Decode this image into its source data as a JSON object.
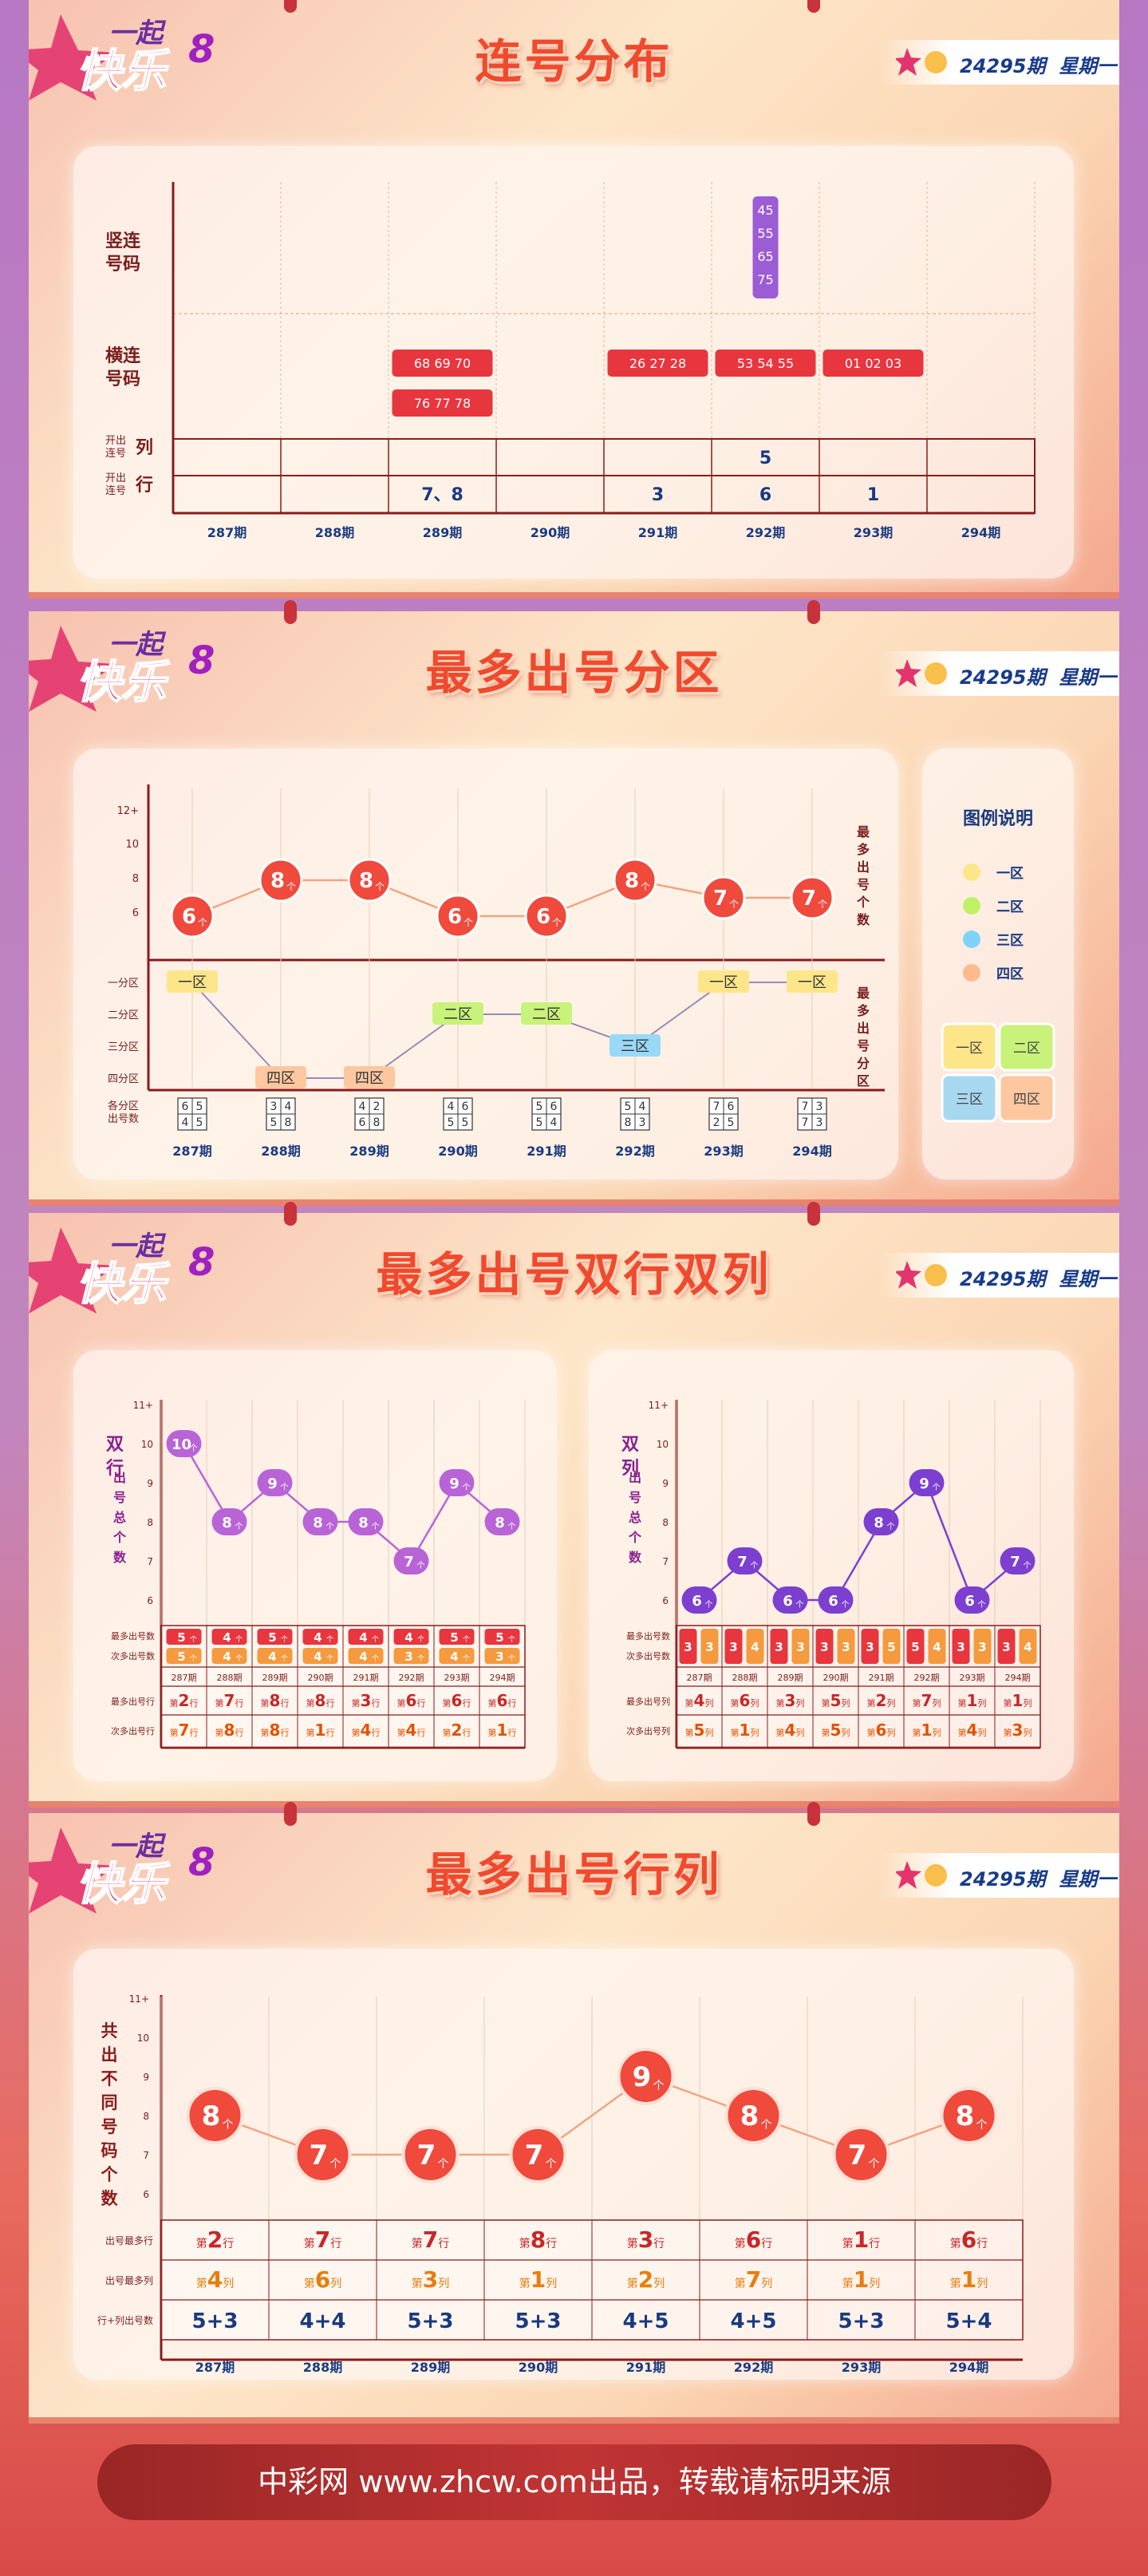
{
  "header": {
    "issue_label": "24295期",
    "weekday": "星期一"
  },
  "logo": {
    "line1": "一起",
    "line2": "快乐",
    "digit": "8"
  },
  "sections": [
    {
      "title": "连号分布"
    },
    {
      "title": "最多出号分区"
    },
    {
      "title": "最多出号双行双列"
    },
    {
      "title": "最多出号行列"
    }
  ],
  "issues": [
    "287期",
    "288期",
    "289期",
    "290期",
    "291期",
    "292期",
    "293期",
    "294期"
  ],
  "consecutive": {
    "row_labels": {
      "vertical": "竖连号码",
      "horizontal": "横连号码",
      "col_line1": "开出连号",
      "col_suffix": "列",
      "row_line1": "开出连号",
      "row_suffix": "行"
    },
    "vertical": [
      {
        "issue_index": 5,
        "numbers": [
          "45",
          "55",
          "65",
          "75"
        ]
      }
    ],
    "horizontal": [
      {
        "issue_index": 2,
        "numbers": [
          "68 69 70",
          "76 77 78"
        ]
      },
      {
        "issue_index": 4,
        "numbers": [
          "26 27 28"
        ]
      },
      {
        "issue_index": 5,
        "numbers": [
          "53 54 55"
        ]
      },
      {
        "issue_index": 6,
        "numbers": [
          "01 02 03"
        ]
      }
    ],
    "cols_row": [
      "",
      "",
      "",
      "",
      "",
      "5",
      "",
      ""
    ],
    "rows_row": [
      "",
      "",
      "7、8",
      "",
      "3",
      "6",
      "1",
      ""
    ]
  },
  "zone": {
    "legend_title": "图例说明",
    "legend": [
      {
        "name": "一区",
        "color": "#fde68a"
      },
      {
        "name": "二区",
        "color": "#bef264"
      },
      {
        "name": "三区",
        "color": "#7dd3fc"
      },
      {
        "name": "四区",
        "color": "#fdba8c"
      }
    ],
    "grid_labels": [
      "一区",
      "二区",
      "三区",
      "四区"
    ],
    "y_title_top": "最多出号个数",
    "y_title_bottom": "最多出号分区",
    "yticks_top": [
      "12+",
      "10",
      "8",
      "6"
    ],
    "zone_axis": [
      "一分区",
      "二分区",
      "三分区",
      "四分区"
    ],
    "zone_count_label": [
      "各分区",
      "出号数"
    ],
    "unit": "个"
  },
  "double": {
    "rows_title": "双行出号总个数",
    "cols_title": "双列出号总个数",
    "yticks": [
      "11+",
      "10",
      "9",
      "8",
      "7",
      "6"
    ],
    "short_issues": [
      "287期",
      "288期",
      "289期",
      "290期",
      "291期",
      "292期",
      "293期",
      "294期"
    ],
    "row_labels": [
      "最多出号数",
      "次多出号数",
      "",
      "最多出号行",
      "次多出号行"
    ],
    "col_labels": [
      "最多出号数",
      "次多出号数",
      "",
      "最多出号列",
      "次多出号列"
    ],
    "unit": "个",
    "row_unit": "行",
    "col_unit": "列",
    "ord": "第"
  },
  "rowcol": {
    "y_title": "共出不同号码个数",
    "yticks": [
      "11+",
      "10",
      "9",
      "8",
      "7",
      "6"
    ],
    "table_labels": [
      "出号最多行",
      "出号最多列",
      "行+列出号数"
    ],
    "unit": "个",
    "row_unit": "行",
    "col_unit": "列",
    "ord": "第"
  },
  "footer": {
    "text": "中彩网 www.zhcw.com出品，转载请标明来源"
  },
  "chart_data": [
    {
      "type": "table",
      "title": "连号分布",
      "categories": [
        "287期",
        "288期",
        "289期",
        "290期",
        "291期",
        "292期",
        "293期",
        "294期"
      ],
      "vertical_consecutive": [
        [],
        [],
        [],
        [],
        [],
        [
          "45",
          "55",
          "65",
          "75"
        ],
        [],
        []
      ],
      "horizontal_consecutive": [
        [],
        [],
        [
          "68 69 70",
          "76 77 78"
        ],
        [],
        [
          "26 27 28"
        ],
        [
          "53 54 55"
        ],
        [
          "01 02 03"
        ],
        []
      ],
      "consecutive_columns": [
        "",
        "",
        "",
        "",
        "",
        "5",
        "",
        ""
      ],
      "consecutive_rows": [
        "",
        "",
        "7、8",
        "",
        "3",
        "6",
        "1",
        ""
      ]
    },
    {
      "type": "line",
      "title": "最多出号分区",
      "categories": [
        "287期",
        "288期",
        "289期",
        "290期",
        "291期",
        "292期",
        "293期",
        "294期"
      ],
      "series": [
        {
          "name": "最多出号个数",
          "values": [
            6,
            8,
            8,
            6,
            6,
            8,
            7,
            7
          ]
        }
      ],
      "max_zone": [
        "一区",
        "四区",
        "四区",
        "二区",
        "二区",
        "三区",
        "一区",
        "一区"
      ],
      "zone_counts": [
        [
          6,
          5,
          4,
          5
        ],
        [
          3,
          4,
          5,
          8
        ],
        [
          4,
          2,
          6,
          8
        ],
        [
          4,
          6,
          5,
          5
        ],
        [
          5,
          6,
          5,
          4
        ],
        [
          5,
          4,
          8,
          3
        ],
        [
          7,
          6,
          2,
          5
        ],
        [
          7,
          3,
          7,
          3
        ]
      ],
      "ylim": [
        6,
        12
      ]
    },
    {
      "type": "line",
      "title": "最多出号双行",
      "categories": [
        "287期",
        "288期",
        "289期",
        "290期",
        "291期",
        "292期",
        "293期",
        "294期"
      ],
      "series": [
        {
          "name": "双行出号总个数",
          "values": [
            10,
            8,
            9,
            8,
            8,
            7,
            9,
            8
          ]
        }
      ],
      "most": [
        5,
        4,
        5,
        4,
        4,
        4,
        5,
        5
      ],
      "second": [
        5,
        4,
        4,
        4,
        4,
        3,
        4,
        3
      ],
      "most_rows": [
        2,
        7,
        8,
        8,
        3,
        6,
        6,
        6
      ],
      "second_rows": [
        7,
        8,
        8,
        1,
        4,
        4,
        2,
        1
      ],
      "ylim": [
        6,
        11
      ]
    },
    {
      "type": "line",
      "title": "最多出号双列",
      "categories": [
        "287期",
        "288期",
        "289期",
        "290期",
        "291期",
        "292期",
        "293期",
        "294期"
      ],
      "series": [
        {
          "name": "双列出号总个数",
          "values": [
            6,
            7,
            6,
            6,
            8,
            9,
            6,
            7
          ]
        }
      ],
      "most": [
        3,
        3,
        3,
        3,
        3,
        5,
        3,
        3
      ],
      "second": [
        3,
        4,
        3,
        3,
        5,
        4,
        3,
        4
      ],
      "most_cols": [
        4,
        6,
        3,
        5,
        2,
        7,
        1,
        1
      ],
      "second_cols": [
        5,
        1,
        4,
        5,
        6,
        1,
        4,
        3
      ],
      "ylim": [
        6,
        11
      ]
    },
    {
      "type": "line",
      "title": "最多出号行列",
      "categories": [
        "287期",
        "288期",
        "289期",
        "290期",
        "291期",
        "292期",
        "293期",
        "294期"
      ],
      "series": [
        {
          "name": "共出不同号码个数",
          "values": [
            8,
            7,
            7,
            7,
            9,
            8,
            7,
            8
          ]
        }
      ],
      "most_row": [
        2,
        7,
        7,
        8,
        3,
        6,
        1,
        6
      ],
      "most_col": [
        4,
        6,
        3,
        1,
        2,
        7,
        1,
        1
      ],
      "row_plus_col": [
        "5+3",
        "4+4",
        "5+3",
        "5+3",
        "4+5",
        "4+5",
        "5+3",
        "5+4"
      ],
      "ylim": [
        6,
        11
      ]
    }
  ]
}
